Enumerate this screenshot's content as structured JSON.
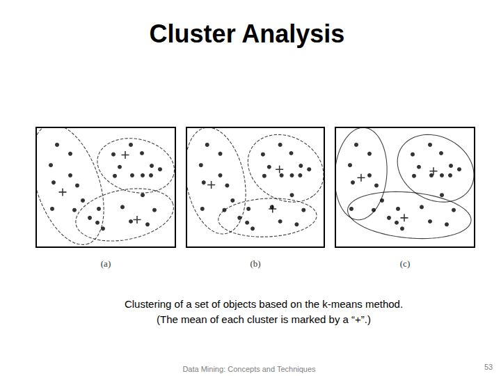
{
  "title": "Cluster Analysis",
  "chart_data": [
    {
      "type": "scatter",
      "title": "(a)",
      "xlim": [
        0,
        100
      ],
      "ylim": [
        0,
        100
      ],
      "tick_labels": false,
      "grid": false,
      "line_style": "dashed",
      "color": "#000000",
      "series": [
        {
          "marker": "circle",
          "x": [
            15,
            24.5,
            10.5,
            24.5,
            12.5,
            29.5,
            33.5,
            11.5,
            27.5,
            38.5
          ],
          "y": [
            85.5,
            78,
            68.5,
            60,
            54,
            51.5,
            39,
            32,
            31,
            24.5
          ]
        },
        {
          "marker": "circle",
          "x": [
            68,
            76,
            55.5,
            83,
            60,
            89,
            69,
            76.5,
            82.5,
            56.5
          ],
          "y": [
            85.5,
            78.5,
            77.5,
            68,
            67,
            65,
            60,
            60,
            60,
            59.5
          ]
        },
        {
          "marker": "circle",
          "x": [
            76.5,
            62,
            45,
            85,
            44,
            68,
            80,
            48
          ],
          "y": [
            43.5,
            33.5,
            32,
            31,
            20.5,
            21.5,
            19,
            15.5
          ]
        }
      ],
      "centers": {
        "marker": "plus",
        "x": [
          19,
          64,
          72.5
        ],
        "y": [
          46,
          77,
          23
        ]
      }
    },
    {
      "type": "scatter",
      "title": "(b)",
      "xlim": [
        0,
        100
      ],
      "ylim": [
        0,
        100
      ],
      "tick_labels": false,
      "grid": false,
      "line_style": "dashed",
      "color": "#000000",
      "series": [
        {
          "marker": "circle",
          "x": [
            15,
            24.5,
            10.5,
            24.5,
            12.5,
            29.5,
            33.5,
            11.5,
            27.5
          ],
          "y": [
            85.5,
            78,
            68.5,
            60,
            54,
            51.5,
            39,
            32,
            31
          ]
        },
        {
          "marker": "circle",
          "x": [
            68,
            76,
            55.5,
            83,
            60,
            89,
            69,
            76.5,
            82.5,
            56.5,
            76.5
          ],
          "y": [
            85.5,
            78.5,
            77.5,
            68,
            67,
            65,
            60,
            60,
            60,
            59.5,
            43.5
          ]
        },
        {
          "marker": "circle",
          "x": [
            38.5,
            62,
            45,
            85,
            44,
            68,
            80,
            48
          ],
          "y": [
            24.5,
            33.5,
            32,
            31,
            20.5,
            21.5,
            19,
            15.5
          ]
        }
      ],
      "centers": {
        "marker": "plus",
        "x": [
          18,
          67.5,
          62.5
        ],
        "y": [
          52,
          65,
          32
        ]
      }
    },
    {
      "type": "scatter",
      "title": "(c)",
      "xlim": [
        0,
        100
      ],
      "ylim": [
        0,
        100
      ],
      "tick_labels": false,
      "grid": false,
      "line_style": "solid",
      "color": "#000000",
      "series": [
        {
          "marker": "circle",
          "x": [
            15,
            24.5,
            10.5,
            24.5,
            12.5,
            29.5,
            11.5
          ],
          "y": [
            85.5,
            78,
            68.5,
            60,
            54,
            51.5,
            32
          ]
        },
        {
          "marker": "circle",
          "x": [
            68,
            76,
            55.5,
            83,
            60,
            89,
            69,
            76.5,
            82.5,
            56.5,
            76.5
          ],
          "y": [
            85.5,
            78.5,
            77.5,
            68,
            67,
            65,
            60,
            60,
            60,
            59.5,
            43.5
          ]
        },
        {
          "marker": "circle",
          "x": [
            33.5,
            27.5,
            38.5,
            62,
            45,
            85,
            44,
            68,
            80,
            48
          ],
          "y": [
            39,
            31,
            24.5,
            33.5,
            32,
            31,
            20.5,
            21.5,
            19,
            15.5
          ]
        }
      ],
      "centers": {
        "marker": "plus",
        "x": [
          18.5,
          70.5,
          49.5
        ],
        "y": [
          58,
          63.5,
          24.5
        ]
      }
    }
  ],
  "caption": [
    "Clustering of a set of objects based on the k-means method.",
    "(The mean of each cluster is marked by a “+”.)"
  ],
  "footer": "Data Mining: Concepts and Techniques",
  "page": 53
}
